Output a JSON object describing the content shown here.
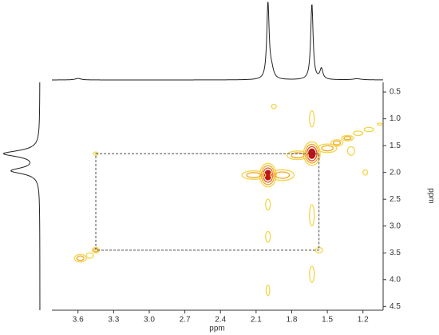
{
  "chart_data": {
    "type": "contour",
    "x_label": "ppm",
    "y_label": "ppm",
    "xlim": [
      3.82,
      1.03
    ],
    "ylim": [
      0.32,
      4.57
    ],
    "xticks": [
      3.6,
      3.3,
      {
        "value": 3.0,
        "label": "3.0"
      },
      2.7,
      2.4,
      2.1,
      1.8,
      1.5,
      1.2
    ],
    "yticks": [
      0.5,
      {
        "value": 1.0,
        "label": "1.0"
      },
      1.5,
      {
        "value": 2.0,
        "label": "2.0"
      },
      2.5,
      {
        "value": 3.0,
        "label": "3.0"
      },
      3.5,
      {
        "value": 4.0,
        "label": "4.0"
      },
      4.5
    ],
    "level_colors": [
      "#f2d64b",
      "#f5a623",
      "#e8541e",
      "#c0141a"
    ],
    "peaks": [
      {
        "x": 2.0,
        "y": 2.05,
        "wx": 0.07,
        "wy": 0.22,
        "levels": 4
      },
      {
        "x": 1.63,
        "y": 1.65,
        "wx": 0.07,
        "wy": 0.22,
        "levels": 4
      },
      {
        "x": 2.12,
        "y": 2.05,
        "wx": 0.1,
        "wy": 0.08,
        "levels": 2
      },
      {
        "x": 1.88,
        "y": 2.05,
        "wx": 0.1,
        "wy": 0.1,
        "levels": 2
      },
      {
        "x": 1.75,
        "y": 1.68,
        "wx": 0.09,
        "wy": 0.08,
        "levels": 2
      },
      {
        "x": 1.5,
        "y": 1.55,
        "wx": 0.08,
        "wy": 0.08,
        "levels": 2
      },
      {
        "x": 1.42,
        "y": 1.45,
        "wx": 0.05,
        "wy": 0.06,
        "levels": 2
      },
      {
        "x": 1.33,
        "y": 1.36,
        "wx": 0.05,
        "wy": 0.05,
        "levels": 2
      },
      {
        "x": 1.24,
        "y": 1.27,
        "wx": 0.04,
        "wy": 0.04,
        "levels": 1
      },
      {
        "x": 1.15,
        "y": 1.2,
        "wx": 0.04,
        "wy": 0.04,
        "levels": 1
      },
      {
        "x": 1.06,
        "y": 1.1,
        "wx": 0.02,
        "wy": 0.02,
        "levels": 1
      },
      {
        "x": 1.3,
        "y": 1.6,
        "wx": 0.03,
        "wy": 0.08,
        "levels": 1
      },
      {
        "x": 1.18,
        "y": 2.0,
        "wx": 0.02,
        "wy": 0.05,
        "levels": 1
      },
      {
        "x": 3.45,
        "y": 1.65,
        "wx": 0.02,
        "wy": 0.03,
        "levels": 1
      },
      {
        "x": 3.45,
        "y": 3.45,
        "wx": 0.03,
        "wy": 0.05,
        "levels": 2
      },
      {
        "x": 3.58,
        "y": 3.6,
        "wx": 0.05,
        "wy": 0.07,
        "levels": 2
      },
      {
        "x": 3.5,
        "y": 3.55,
        "wx": 0.03,
        "wy": 0.05,
        "levels": 1
      },
      {
        "x": 1.57,
        "y": 3.45,
        "wx": 0.03,
        "wy": 0.05,
        "levels": 1
      },
      {
        "x": 1.95,
        "y": 0.77,
        "wx": 0.02,
        "wy": 0.04,
        "levels": 1
      },
      {
        "x": 1.63,
        "y": 1.0,
        "wx": 0.02,
        "wy": 0.15,
        "levels": 1
      },
      {
        "x": 1.63,
        "y": 2.8,
        "wx": 0.02,
        "wy": 0.2,
        "levels": 1
      },
      {
        "x": 1.63,
        "y": 3.9,
        "wx": 0.02,
        "wy": 0.15,
        "levels": 1
      },
      {
        "x": 2.0,
        "y": 2.6,
        "wx": 0.02,
        "wy": 0.1,
        "levels": 1
      },
      {
        "x": 2.0,
        "y": 3.2,
        "wx": 0.02,
        "wy": 0.1,
        "levels": 1
      },
      {
        "x": 2.0,
        "y": 4.2,
        "wx": 0.015,
        "wy": 0.1,
        "levels": 1
      }
    ],
    "box": {
      "x": [
        3.45,
        1.57
      ],
      "y": [
        1.65,
        3.45
      ]
    },
    "top_projection": [
      {
        "x": 2.0,
        "h": 100,
        "w": 0.012
      },
      {
        "x": 1.63,
        "h": 100,
        "w": 0.012
      },
      {
        "x": 1.97,
        "h": 12,
        "w": 0.02
      },
      {
        "x": 1.55,
        "h": 14,
        "w": 0.015
      },
      {
        "x": 3.6,
        "h": 2,
        "w": 0.03
      },
      {
        "x": 1.25,
        "h": 1.5,
        "w": 0.04
      }
    ],
    "left_projection": [
      {
        "y": 1.65,
        "h": 100,
        "w": 0.07
      },
      {
        "y": 1.97,
        "h": 78,
        "w": 0.07
      }
    ]
  }
}
